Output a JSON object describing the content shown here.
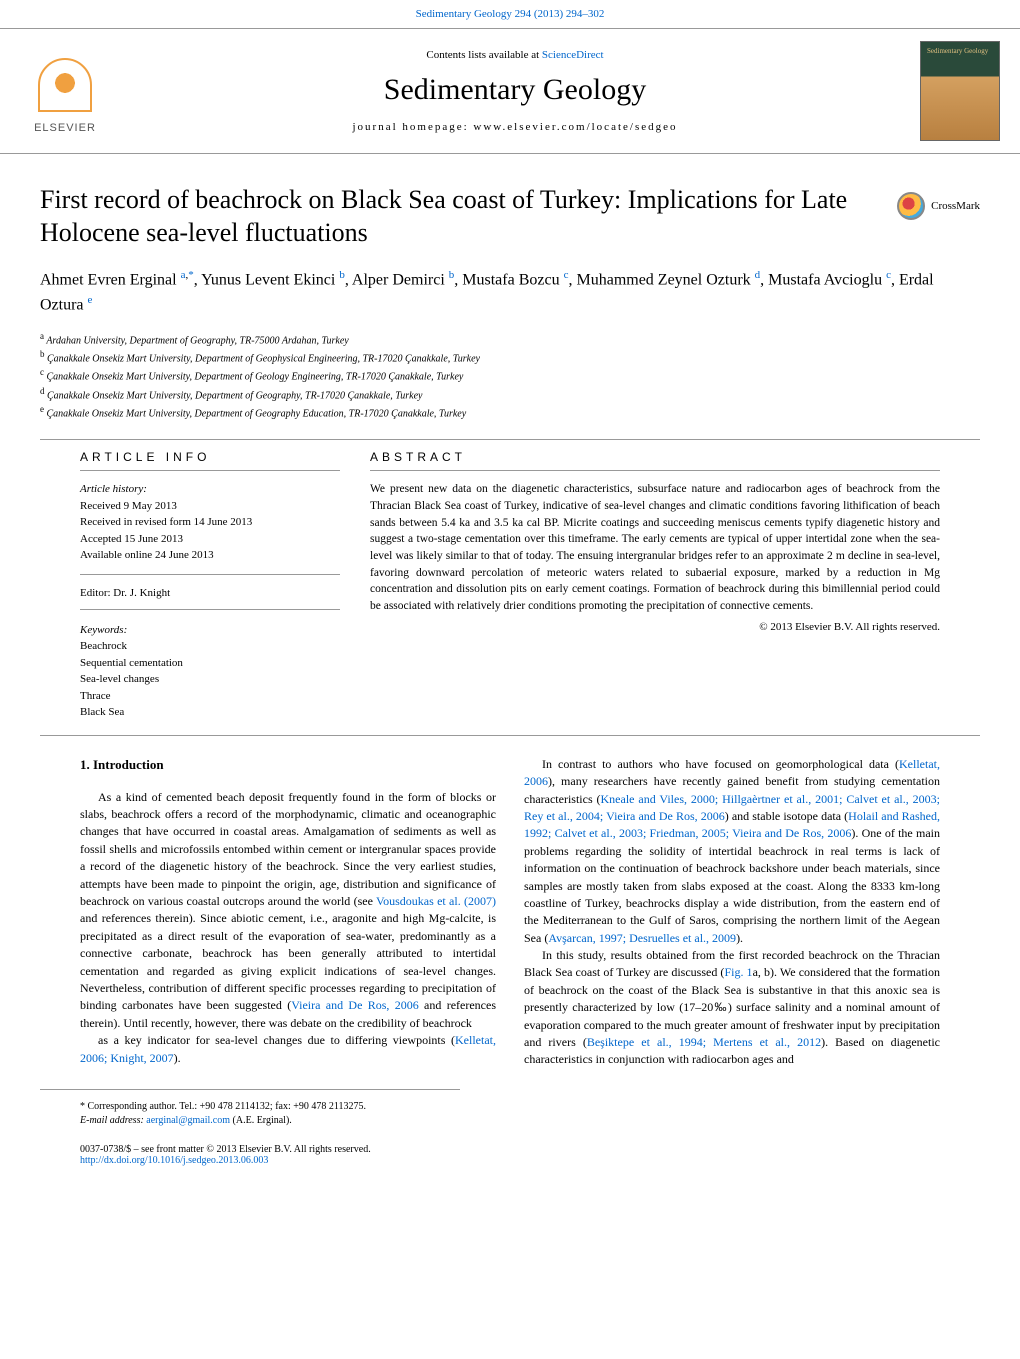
{
  "header": {
    "citation": "Sedimentary Geology 294 (2013) 294–302",
    "contents_prefix": "Contents lists available at ",
    "contents_link": "ScienceDirect",
    "journal_name": "Sedimentary Geology",
    "homepage_text": "journal homepage: www.elsevier.com/locate/sedgeo",
    "publisher": "ELSEVIER",
    "cover_text": "Sedimentary Geology"
  },
  "crossmark_label": "CrossMark",
  "article": {
    "title": "First record of beachrock on Black Sea coast of Turkey: Implications for Late Holocene sea-level fluctuations",
    "authors_html": "Ahmet Evren Erginal <sup><a href='#'>a</a>,<a href='#'>*</a></sup>, Yunus Levent Ekinci <sup><a href='#'>b</a></sup>, Alper Demirci <sup><a href='#'>b</a></sup>, Mustafa Bozcu <sup><a href='#'>c</a></sup>, Muhammed Zeynel Ozturk <sup><a href='#'>d</a></sup>, Mustafa Avcioglu <sup><a href='#'>c</a></sup>, Erdal Oztura <sup><a href='#'>e</a></sup>",
    "affiliations": [
      {
        "sup": "a",
        "text": "Ardahan University, Department of Geography, TR-75000 Ardahan, Turkey"
      },
      {
        "sup": "b",
        "text": "Çanakkale Onsekiz Mart University, Department of Geophysical Engineering, TR-17020 Çanakkale, Turkey"
      },
      {
        "sup": "c",
        "text": "Çanakkale Onsekiz Mart University, Department of Geology Engineering, TR-17020 Çanakkale, Turkey"
      },
      {
        "sup": "d",
        "text": "Çanakkale Onsekiz Mart University, Department of Geography, TR-17020 Çanakkale, Turkey"
      },
      {
        "sup": "e",
        "text": "Çanakkale Onsekiz Mart University, Department of Geography Education, TR-17020 Çanakkale, Turkey"
      }
    ]
  },
  "info": {
    "article_info_label": "ARTICLE INFO",
    "abstract_label": "ABSTRACT",
    "history_label": "Article history:",
    "history": {
      "received": "Received 9 May 2013",
      "revised": "Received in revised form 14 June 2013",
      "accepted": "Accepted 15 June 2013",
      "online": "Available online 24 June 2013"
    },
    "editor": "Editor: Dr. J. Knight",
    "keywords_label": "Keywords:",
    "keywords": [
      "Beachrock",
      "Sequential cementation",
      "Sea-level changes",
      "Thrace",
      "Black Sea"
    ]
  },
  "abstract": {
    "text": "We present new data on the diagenetic characteristics, subsurface nature and radiocarbon ages of beachrock from the Thracian Black Sea coast of Turkey, indicative of sea-level changes and climatic conditions favoring lithification of beach sands between 5.4 ka and 3.5 ka cal BP. Micrite coatings and succeeding meniscus cements typify diagenetic history and suggest a two-stage cementation over this timeframe. The early cements are typical of upper intertidal zone when the sea-level was likely similar to that of today. The ensuing intergranular bridges refer to an approximate 2 m decline in sea-level, favoring downward percolation of meteoric waters related to subaerial exposure, marked by a reduction in Mg concentration and dissolution pits on early cement coatings. Formation of beachrock during this bimillennial period could be associated with relatively drier conditions promoting the precipitation of connective cements.",
    "copyright": "© 2013 Elsevier B.V. All rights reserved."
  },
  "body": {
    "heading": "1. Introduction",
    "para1_html": "As a kind of cemented beach deposit frequently found in the form of blocks or slabs, beachrock offers a record of the morphodynamic, climatic and oceanographic changes that have occurred in coastal areas. Amalgamation of sediments as well as fossil shells and microfossils entombed within cement or intergranular spaces provide a record of the diagenetic history of the beachrock. Since the very earliest studies, attempts have been made to pinpoint the origin, age, distribution and significance of beachrock on various coastal outcrops around the world (see <a href='#'>Vousdoukas et al. (2007)</a> and references therein). Since abiotic cement, i.e., aragonite and high Mg-calcite, is precipitated as a direct result of the evaporation of sea-water, predominantly as a connective carbonate, beachrock has been generally attributed to intertidal cementation and regarded as giving explicit indications of sea-level changes. Nevertheless, contribution of different specific processes regarding to precipitation of binding carbonates have been suggested (<a href='#'>Vieira and De Ros, 2006</a> and references therein). Until recently, however, there was debate on the credibility of beachrock",
    "para2_html": "as a key indicator for sea-level changes due to differing viewpoints (<a href='#'>Kelletat, 2006; Knight, 2007</a>).",
    "para3_html": "In contrast to authors who have focused on geomorphological data (<a href='#'>Kelletat, 2006</a>), many researchers have recently gained benefit from studying cementation characteristics (<a href='#'>Kneale and Viles, 2000; Hillgaèrtner et al., 2001; Calvet et al., 2003; Rey et al., 2004; Vieira and De Ros, 2006</a>) and stable isotope data (<a href='#'>Holail and Rashed, 1992; Calvet et al., 2003; Friedman, 2005; Vieira and De Ros, 2006</a>). One of the main problems regarding the solidity of intertidal beachrock in real terms is lack of information on the continuation of beachrock backshore under beach materials, since samples are mostly taken from slabs exposed at the coast. Along the 8333 km-long coastline of Turkey, beachrocks display a wide distribution, from the eastern end of the Mediterranean to the Gulf of Saros, comprising the northern limit of the Aegean Sea (<a href='#'>Avşarcan, 1997; Desruelles et al., 2009</a>).",
    "para4_html": "In this study, results obtained from the first recorded beachrock on the Thracian Black Sea coast of Turkey are discussed (<a href='#'>Fig. 1</a>a, b). We considered that the formation of beachrock on the coast of the Black Sea is substantive in that this anoxic sea is presently characterized by low (17–20<span class='permil'>‰</span>) surface salinity and a nominal amount of evaporation compared to the much greater amount of freshwater input by precipitation and rivers (<a href='#'>Beşiktepe et al., 1994; Mertens et al., 2012</a>). Based on diagenetic characteristics in conjunction with radiocarbon ages and"
  },
  "footer": {
    "corresponding": "* Corresponding author. Tel.: +90 478 2114132; fax: +90 478 2113275.",
    "email_label": "E-mail address: ",
    "email": "aerginal@gmail.com",
    "email_suffix": " (A.E. Erginal).",
    "front_matter": "0037-0738/$ – see front matter © 2013 Elsevier B.V. All rights reserved.",
    "doi": "http://dx.doi.org/10.1016/j.sedgeo.2013.06.003"
  }
}
